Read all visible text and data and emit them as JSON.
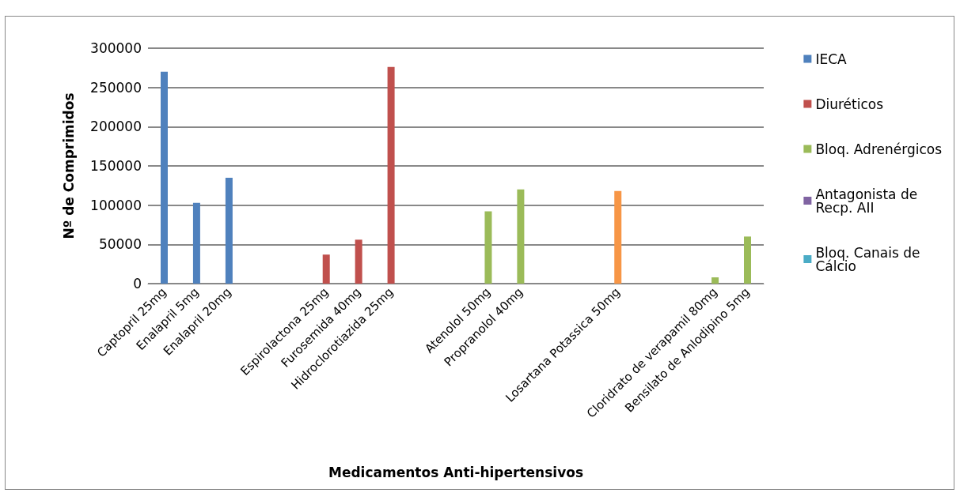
{
  "chart_data": {
    "type": "bar",
    "xlabel": "Medicamentos Anti-hipertensivos",
    "ylabel": "Nº de Comprimidos",
    "categories": [
      "Captopril 25mg",
      "Enalapril 5mg",
      "Enalapril 20mg",
      null,
      null,
      "Espirolactona 25mg",
      "Furosemida 40mg",
      "Hidroclorotiazida 25mg",
      null,
      null,
      "Atenolol 50mg",
      "Propranolol 40mg",
      null,
      null,
      "Losartana Potassica 50mg",
      null,
      null,
      "Cloridrato de verapamil 80mg",
      "Bensilato de Anlodipino 5mg"
    ],
    "series": [
      {
        "name": "IECA",
        "color": "#4f81bd",
        "values": [
          270000,
          103000,
          135000,
          null,
          null,
          null,
          null,
          null,
          null,
          null,
          null,
          null,
          null,
          null,
          null,
          null,
          null,
          null,
          null
        ]
      },
      {
        "name": "Diuréticos",
        "color": "#c0504d",
        "values": [
          null,
          null,
          null,
          null,
          null,
          37000,
          56000,
          276000,
          null,
          null,
          null,
          null,
          null,
          null,
          null,
          null,
          null,
          null,
          null
        ]
      },
      {
        "name": "Bloq. Adrenérgicos",
        "color": "#9bbb59",
        "values": [
          null,
          null,
          null,
          null,
          null,
          null,
          null,
          null,
          null,
          null,
          92000,
          120000,
          null,
          null,
          null,
          null,
          null,
          8000,
          60000
        ]
      },
      {
        "name": "Antagonista de Recp. AII",
        "color": "#8064a2",
        "values": [
          null,
          null,
          null,
          null,
          null,
          null,
          null,
          null,
          null,
          null,
          null,
          null,
          null,
          null,
          null,
          null,
          null,
          null,
          null
        ]
      },
      {
        "name": "Bloq. Canais de Cálcio",
        "color": "#4bacc6",
        "values": [
          null,
          null,
          null,
          null,
          null,
          null,
          null,
          null,
          null,
          null,
          null,
          null,
          null,
          null,
          null,
          null,
          null,
          null,
          null
        ]
      },
      {
        "color": "#f79646",
        "values": [
          null,
          null,
          null,
          null,
          null,
          null,
          null,
          null,
          null,
          null,
          null,
          null,
          null,
          null,
          118000,
          null,
          null,
          null,
          null
        ]
      }
    ],
    "ylim": [
      0,
      300000
    ],
    "yticks": [
      0,
      50000,
      100000,
      150000,
      200000,
      250000,
      300000
    ],
    "grid": "y",
    "legend": "right"
  }
}
